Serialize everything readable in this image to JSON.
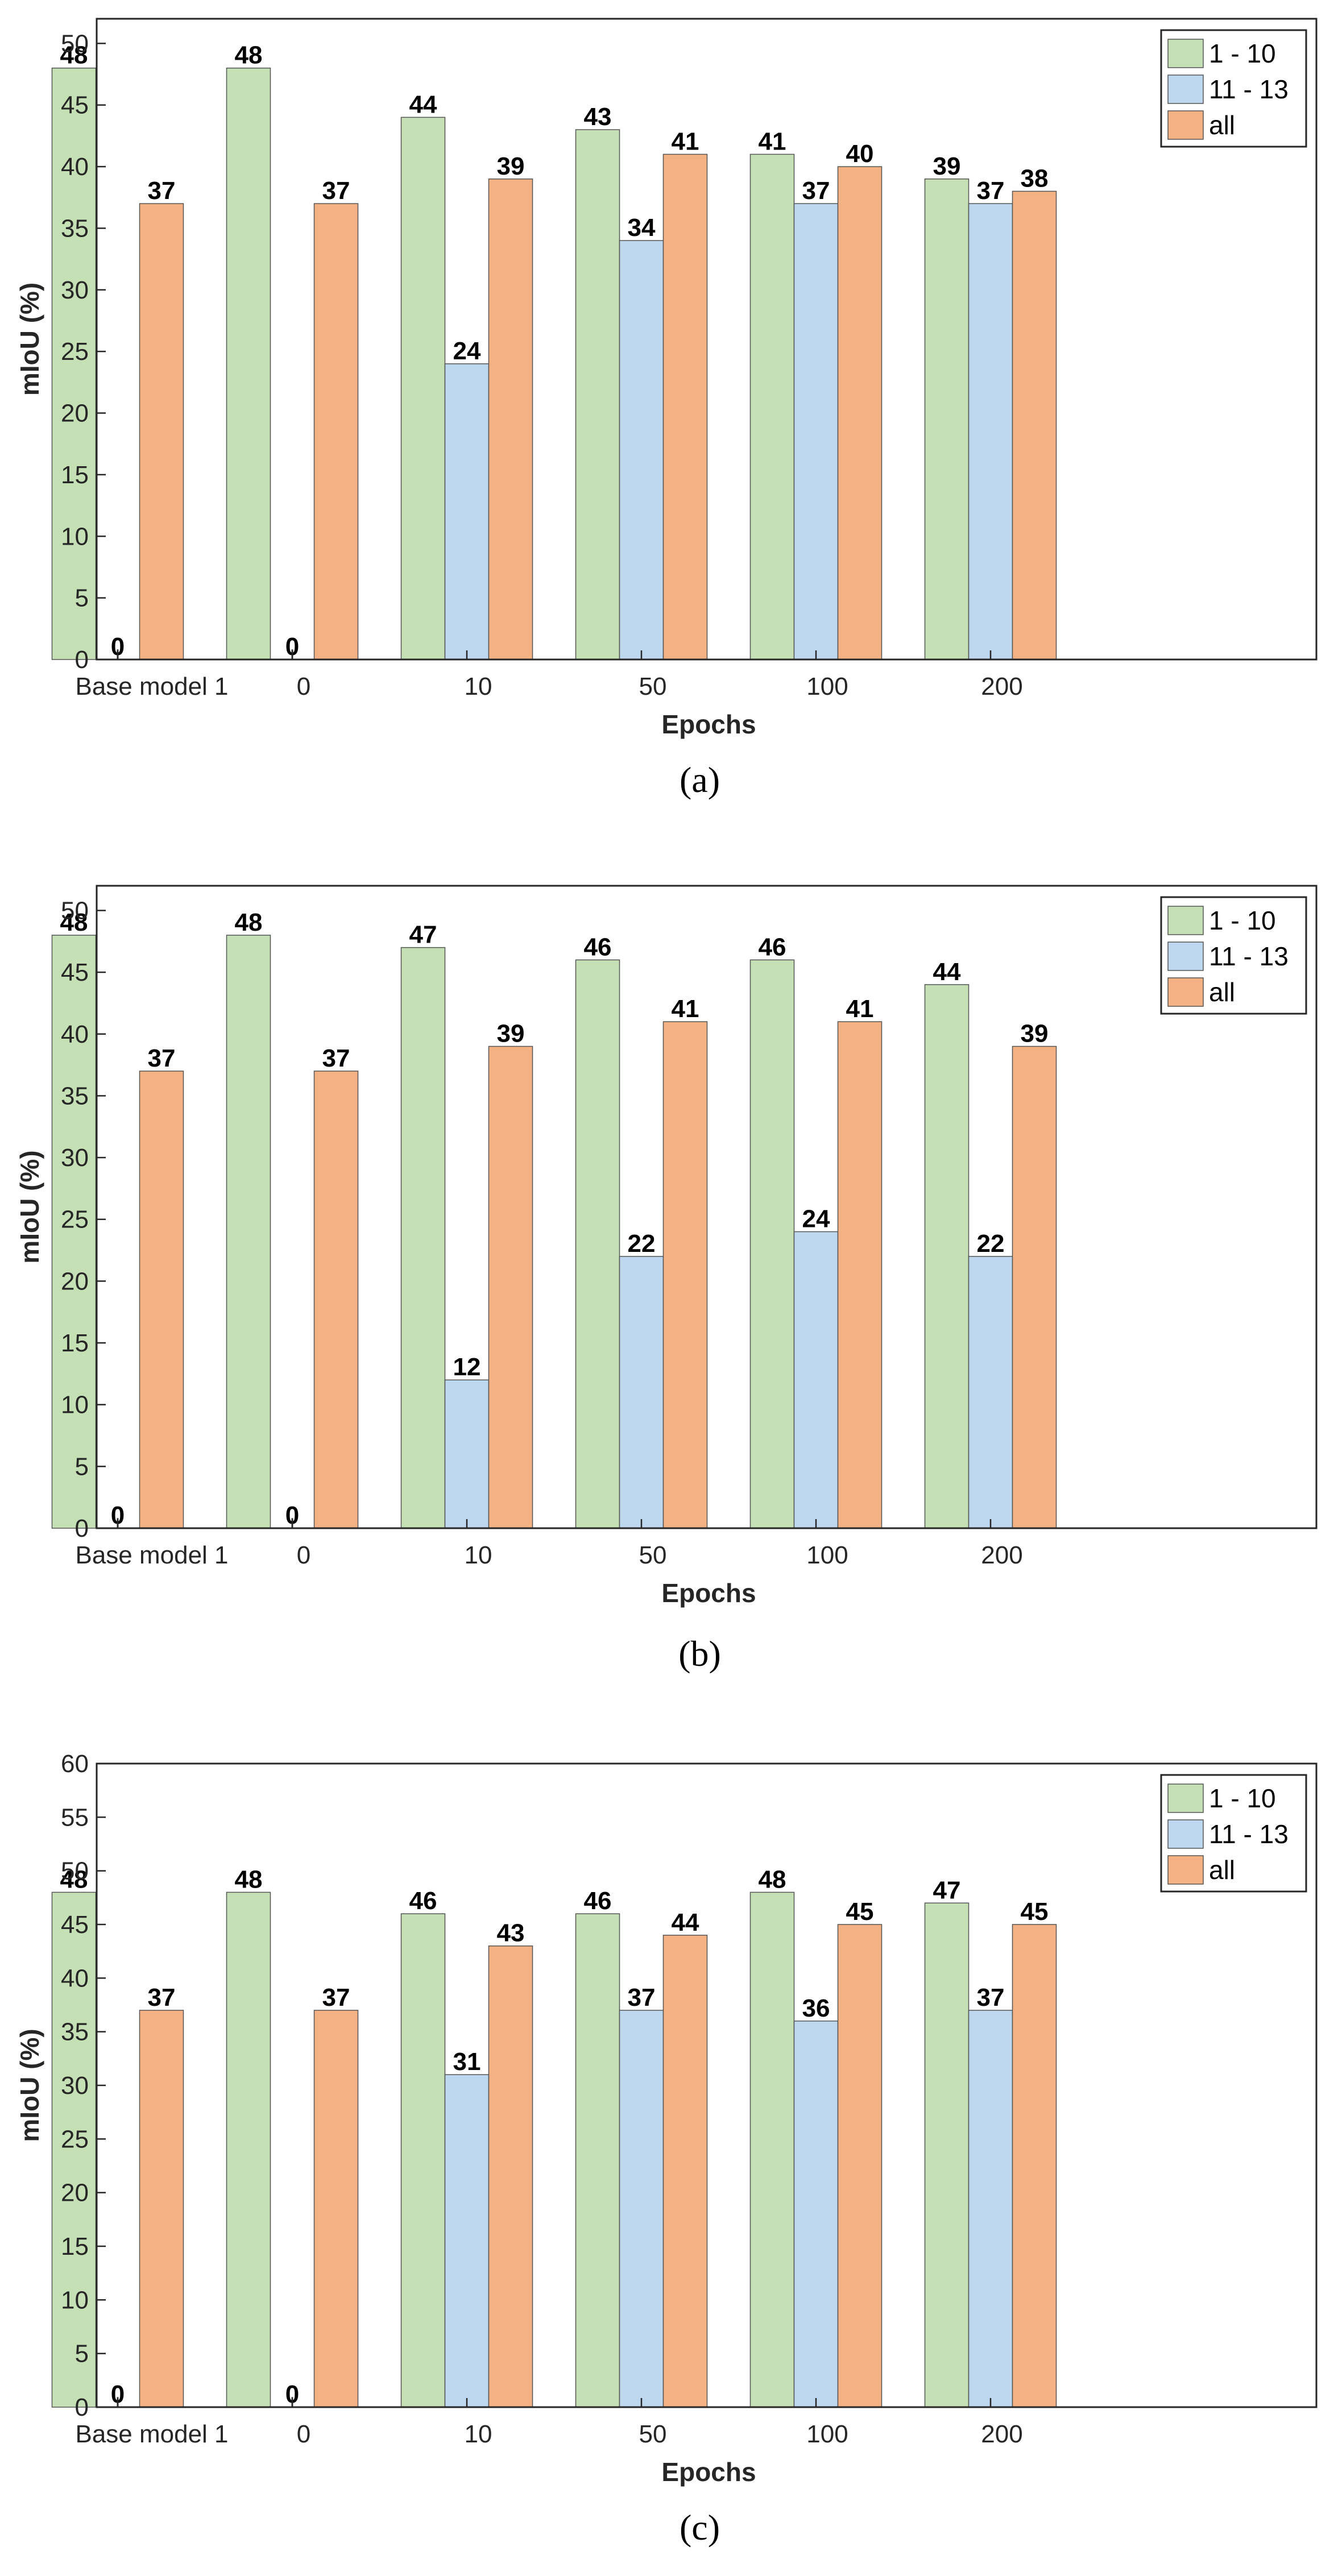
{
  "chart_data": [
    {
      "type": "bar",
      "title": "",
      "caption": "(a)",
      "xlabel": "Epochs",
      "ylabel": "mIoU (%)",
      "ylim": [
        0,
        52
      ],
      "yticks": [
        0,
        5,
        10,
        15,
        20,
        25,
        30,
        35,
        40,
        45,
        50
      ],
      "grid": false,
      "legend_position": "top-right",
      "categories": [
        "Base model 1",
        "0",
        "10",
        "50",
        "100",
        "200"
      ],
      "series": [
        {
          "name": "1 - 10",
          "color": "#c5e0b4",
          "values": [
            48,
            48,
            44,
            43,
            41,
            39
          ]
        },
        {
          "name": "11 - 13",
          "color": "#bdd7ee",
          "values": [
            0,
            0,
            24,
            34,
            37,
            37
          ]
        },
        {
          "name": "all",
          "color": "#f4b183",
          "values": [
            37,
            37,
            39,
            41,
            40,
            38
          ]
        }
      ]
    },
    {
      "type": "bar",
      "title": "",
      "caption": "(b)",
      "xlabel": "Epochs",
      "ylabel": "mIoU (%)",
      "ylim": [
        0,
        52
      ],
      "yticks": [
        0,
        5,
        10,
        15,
        20,
        25,
        30,
        35,
        40,
        45,
        50
      ],
      "grid": false,
      "legend_position": "top-right",
      "categories": [
        "Base model 1",
        "0",
        "10",
        "50",
        "100",
        "200"
      ],
      "series": [
        {
          "name": "1 - 10",
          "color": "#c5e0b4",
          "values": [
            48,
            48,
            47,
            46,
            46,
            44
          ]
        },
        {
          "name": "11 - 13",
          "color": "#bdd7ee",
          "values": [
            0,
            0,
            12,
            22,
            24,
            22
          ]
        },
        {
          "name": "all",
          "color": "#f4b183",
          "values": [
            37,
            37,
            39,
            41,
            41,
            39
          ]
        }
      ]
    },
    {
      "type": "bar",
      "title": "",
      "caption": "(c)",
      "xlabel": "Epochs",
      "ylabel": "mIoU (%)",
      "ylim": [
        0,
        60
      ],
      "yticks": [
        0,
        5,
        10,
        15,
        20,
        25,
        30,
        35,
        40,
        45,
        50,
        55,
        60
      ],
      "grid": false,
      "legend_position": "top-right",
      "categories": [
        "Base model 1",
        "0",
        "10",
        "50",
        "100",
        "200"
      ],
      "series": [
        {
          "name": "1 - 10",
          "color": "#c5e0b4",
          "values": [
            48,
            48,
            46,
            46,
            48,
            47
          ]
        },
        {
          "name": "11 - 13",
          "color": "#bdd7ee",
          "values": [
            0,
            0,
            31,
            37,
            36,
            37
          ]
        },
        {
          "name": "all",
          "color": "#f4b183",
          "values": [
            37,
            37,
            43,
            44,
            45,
            45
          ]
        }
      ]
    }
  ]
}
